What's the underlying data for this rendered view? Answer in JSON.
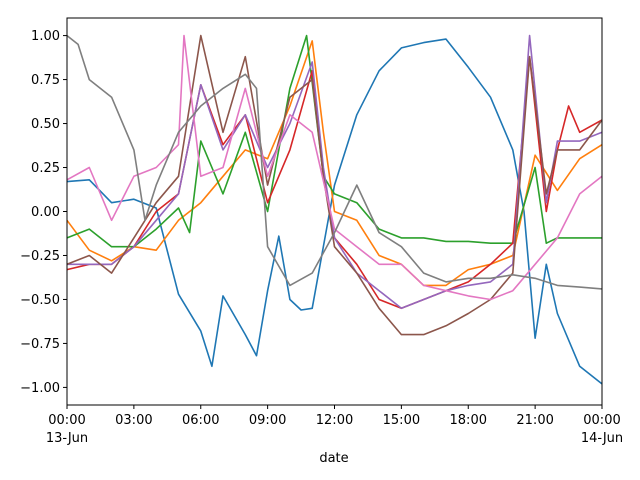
{
  "chart_data": {
    "type": "line",
    "xlabel": "date",
    "ylabel": "",
    "x_start_label": "00:00\n13-Jun",
    "x_end_label": "00:00\n14-Jun",
    "xticks": [
      {
        "time": "2013-06-13 00:00",
        "label": "00:00",
        "sublabel": "13-Jun"
      },
      {
        "time": "2013-06-13 03:00",
        "label": "03:00",
        "sublabel": ""
      },
      {
        "time": "2013-06-13 06:00",
        "label": "06:00",
        "sublabel": ""
      },
      {
        "time": "2013-06-13 09:00",
        "label": "09:00",
        "sublabel": ""
      },
      {
        "time": "2013-06-13 12:00",
        "label": "12:00",
        "sublabel": ""
      },
      {
        "time": "2013-06-13 15:00",
        "label": "15:00",
        "sublabel": ""
      },
      {
        "time": "2013-06-13 18:00",
        "label": "18:00",
        "sublabel": ""
      },
      {
        "time": "2013-06-13 21:00",
        "label": "21:00",
        "sublabel": ""
      },
      {
        "time": "2013-06-14 00:00",
        "label": "00:00",
        "sublabel": "14-Jun"
      }
    ],
    "yticks": [
      -1.0,
      -0.75,
      -0.5,
      -0.25,
      0.0,
      0.25,
      0.5,
      0.75,
      1.0
    ],
    "ytick_labels": [
      "−1.00",
      "−0.75",
      "−0.50",
      "−0.25",
      "0.00",
      "0.25",
      "0.50",
      "0.75",
      "1.00"
    ],
    "xlim": [
      "2013-06-13 00:00",
      "2013-06-14 00:00"
    ],
    "ylim": [
      -1.1,
      1.1
    ],
    "grid": false,
    "series": [
      {
        "color": "#1f77b4",
        "points": [
          [
            "2013-06-13 00:00",
            0.17
          ],
          [
            "2013-06-13 01:00",
            0.18
          ],
          [
            "2013-06-13 02:00",
            0.05
          ],
          [
            "2013-06-13 03:00",
            0.07
          ],
          [
            "2013-06-13 04:00",
            0.02
          ],
          [
            "2013-06-13 05:00",
            -0.47
          ],
          [
            "2013-06-13 06:00",
            -0.68
          ],
          [
            "2013-06-13 06:30",
            -0.88
          ],
          [
            "2013-06-13 07:00",
            -0.48
          ],
          [
            "2013-06-13 08:00",
            -0.7
          ],
          [
            "2013-06-13 08:30",
            -0.82
          ],
          [
            "2013-06-13 09:00",
            -0.45
          ],
          [
            "2013-06-13 09:30",
            -0.14
          ],
          [
            "2013-06-13 10:00",
            -0.5
          ],
          [
            "2013-06-13 10:30",
            -0.56
          ],
          [
            "2013-06-13 11:00",
            -0.55
          ],
          [
            "2013-06-13 12:00",
            0.15
          ],
          [
            "2013-06-13 13:00",
            0.55
          ],
          [
            "2013-06-13 14:00",
            0.8
          ],
          [
            "2013-06-13 15:00",
            0.93
          ],
          [
            "2013-06-13 16:00",
            0.96
          ],
          [
            "2013-06-13 17:00",
            0.98
          ],
          [
            "2013-06-13 18:00",
            0.82
          ],
          [
            "2013-06-13 19:00",
            0.65
          ],
          [
            "2013-06-13 20:00",
            0.35
          ],
          [
            "2013-06-13 20:30",
            0.0
          ],
          [
            "2013-06-13 21:00",
            -0.72
          ],
          [
            "2013-06-13 21:30",
            -0.3
          ],
          [
            "2013-06-13 22:00",
            -0.58
          ],
          [
            "2013-06-13 23:00",
            -0.88
          ],
          [
            "2013-06-14 00:00",
            -0.98
          ]
        ]
      },
      {
        "color": "#ff7f0e",
        "points": [
          [
            "2013-06-13 00:00",
            -0.05
          ],
          [
            "2013-06-13 01:00",
            -0.22
          ],
          [
            "2013-06-13 02:00",
            -0.28
          ],
          [
            "2013-06-13 03:00",
            -0.2
          ],
          [
            "2013-06-13 04:00",
            -0.22
          ],
          [
            "2013-06-13 05:00",
            -0.05
          ],
          [
            "2013-06-13 06:00",
            0.05
          ],
          [
            "2013-06-13 07:00",
            0.2
          ],
          [
            "2013-06-13 08:00",
            0.35
          ],
          [
            "2013-06-13 09:00",
            0.3
          ],
          [
            "2013-06-13 10:00",
            0.6
          ],
          [
            "2013-06-13 11:00",
            0.97
          ],
          [
            "2013-06-13 11:30",
            0.45
          ],
          [
            "2013-06-13 12:00",
            0.0
          ],
          [
            "2013-06-13 13:00",
            -0.05
          ],
          [
            "2013-06-13 14:00",
            -0.25
          ],
          [
            "2013-06-13 15:00",
            -0.3
          ],
          [
            "2013-06-13 16:00",
            -0.42
          ],
          [
            "2013-06-13 17:00",
            -0.42
          ],
          [
            "2013-06-13 18:00",
            -0.33
          ],
          [
            "2013-06-13 19:00",
            -0.3
          ],
          [
            "2013-06-13 20:00",
            -0.25
          ],
          [
            "2013-06-13 21:00",
            0.32
          ],
          [
            "2013-06-13 22:00",
            0.12
          ],
          [
            "2013-06-13 23:00",
            0.3
          ],
          [
            "2013-06-14 00:00",
            0.38
          ]
        ]
      },
      {
        "color": "#2ca02c",
        "points": [
          [
            "2013-06-13 00:00",
            -0.15
          ],
          [
            "2013-06-13 01:00",
            -0.1
          ],
          [
            "2013-06-13 02:00",
            -0.2
          ],
          [
            "2013-06-13 03:00",
            -0.2
          ],
          [
            "2013-06-13 04:00",
            -0.1
          ],
          [
            "2013-06-13 05:00",
            0.02
          ],
          [
            "2013-06-13 05:30",
            -0.12
          ],
          [
            "2013-06-13 06:00",
            0.4
          ],
          [
            "2013-06-13 07:00",
            0.1
          ],
          [
            "2013-06-13 08:00",
            0.45
          ],
          [
            "2013-06-13 09:00",
            0.0
          ],
          [
            "2013-06-13 10:00",
            0.7
          ],
          [
            "2013-06-13 10:45",
            1.0
          ],
          [
            "2013-06-13 11:30",
            0.2
          ],
          [
            "2013-06-13 12:00",
            0.1
          ],
          [
            "2013-06-13 13:00",
            0.05
          ],
          [
            "2013-06-13 14:00",
            -0.1
          ],
          [
            "2013-06-13 15:00",
            -0.15
          ],
          [
            "2013-06-13 16:00",
            -0.15
          ],
          [
            "2013-06-13 17:00",
            -0.17
          ],
          [
            "2013-06-13 18:00",
            -0.17
          ],
          [
            "2013-06-13 19:00",
            -0.18
          ],
          [
            "2013-06-13 20:00",
            -0.18
          ],
          [
            "2013-06-13 21:00",
            0.25
          ],
          [
            "2013-06-13 21:30",
            -0.18
          ],
          [
            "2013-06-13 22:00",
            -0.15
          ],
          [
            "2013-06-13 23:00",
            -0.15
          ],
          [
            "2013-06-14 00:00",
            -0.15
          ]
        ]
      },
      {
        "color": "#d62728",
        "points": [
          [
            "2013-06-13 00:00",
            -0.33
          ],
          [
            "2013-06-13 01:00",
            -0.3
          ],
          [
            "2013-06-13 02:00",
            -0.3
          ],
          [
            "2013-06-13 03:00",
            -0.2
          ],
          [
            "2013-06-13 04:00",
            0.0
          ],
          [
            "2013-06-13 05:00",
            0.1
          ],
          [
            "2013-06-13 06:00",
            0.72
          ],
          [
            "2013-06-13 07:00",
            0.38
          ],
          [
            "2013-06-13 08:00",
            0.55
          ],
          [
            "2013-06-13 09:00",
            0.05
          ],
          [
            "2013-06-13 10:00",
            0.35
          ],
          [
            "2013-06-13 11:00",
            0.8
          ],
          [
            "2013-06-13 11:30",
            0.2
          ],
          [
            "2013-06-13 12:00",
            -0.15
          ],
          [
            "2013-06-13 13:00",
            -0.3
          ],
          [
            "2013-06-13 14:00",
            -0.5
          ],
          [
            "2013-06-13 15:00",
            -0.55
          ],
          [
            "2013-06-13 16:00",
            -0.5
          ],
          [
            "2013-06-13 17:00",
            -0.45
          ],
          [
            "2013-06-13 18:00",
            -0.4
          ],
          [
            "2013-06-13 19:00",
            -0.3
          ],
          [
            "2013-06-13 20:00",
            -0.18
          ],
          [
            "2013-06-13 20:45",
            0.88
          ],
          [
            "2013-06-13 21:30",
            0.0
          ],
          [
            "2013-06-13 22:00",
            0.35
          ],
          [
            "2013-06-13 22:30",
            0.6
          ],
          [
            "2013-06-13 23:00",
            0.45
          ],
          [
            "2013-06-14 00:00",
            0.52
          ]
        ]
      },
      {
        "color": "#9467bd",
        "points": [
          [
            "2013-06-13 00:00",
            -0.3
          ],
          [
            "2013-06-13 01:00",
            -0.3
          ],
          [
            "2013-06-13 02:00",
            -0.3
          ],
          [
            "2013-06-13 03:00",
            -0.2
          ],
          [
            "2013-06-13 04:00",
            -0.05
          ],
          [
            "2013-06-13 05:00",
            0.1
          ],
          [
            "2013-06-13 06:00",
            0.72
          ],
          [
            "2013-06-13 07:00",
            0.35
          ],
          [
            "2013-06-13 08:00",
            0.55
          ],
          [
            "2013-06-13 09:00",
            0.25
          ],
          [
            "2013-06-13 10:00",
            0.5
          ],
          [
            "2013-06-13 11:00",
            0.85
          ],
          [
            "2013-06-13 11:30",
            0.25
          ],
          [
            "2013-06-13 12:00",
            -0.15
          ],
          [
            "2013-06-13 13:00",
            -0.35
          ],
          [
            "2013-06-13 14:00",
            -0.45
          ],
          [
            "2013-06-13 15:00",
            -0.55
          ],
          [
            "2013-06-13 16:00",
            -0.5
          ],
          [
            "2013-06-13 17:00",
            -0.45
          ],
          [
            "2013-06-13 18:00",
            -0.42
          ],
          [
            "2013-06-13 19:00",
            -0.4
          ],
          [
            "2013-06-13 20:00",
            -0.3
          ],
          [
            "2013-06-13 20:45",
            1.0
          ],
          [
            "2013-06-13 21:30",
            0.05
          ],
          [
            "2013-06-13 22:00",
            0.4
          ],
          [
            "2013-06-13 23:00",
            0.4
          ],
          [
            "2013-06-14 00:00",
            0.45
          ]
        ]
      },
      {
        "color": "#8c564b",
        "points": [
          [
            "2013-06-13 00:00",
            -0.3
          ],
          [
            "2013-06-13 01:00",
            -0.25
          ],
          [
            "2013-06-13 02:00",
            -0.35
          ],
          [
            "2013-06-13 03:00",
            -0.15
          ],
          [
            "2013-06-13 04:00",
            0.05
          ],
          [
            "2013-06-13 05:00",
            0.2
          ],
          [
            "2013-06-13 06:00",
            1.0
          ],
          [
            "2013-06-13 07:00",
            0.45
          ],
          [
            "2013-06-13 08:00",
            0.88
          ],
          [
            "2013-06-13 09:00",
            0.15
          ],
          [
            "2013-06-13 10:00",
            0.65
          ],
          [
            "2013-06-13 11:00",
            0.75
          ],
          [
            "2013-06-13 11:30",
            0.2
          ],
          [
            "2013-06-13 12:00",
            -0.2
          ],
          [
            "2013-06-13 13:00",
            -0.35
          ],
          [
            "2013-06-13 14:00",
            -0.55
          ],
          [
            "2013-06-13 15:00",
            -0.7
          ],
          [
            "2013-06-13 16:00",
            -0.7
          ],
          [
            "2013-06-13 17:00",
            -0.65
          ],
          [
            "2013-06-13 18:00",
            -0.58
          ],
          [
            "2013-06-13 19:00",
            -0.5
          ],
          [
            "2013-06-13 20:00",
            -0.35
          ],
          [
            "2013-06-13 20:45",
            0.88
          ],
          [
            "2013-06-13 21:30",
            0.1
          ],
          [
            "2013-06-13 22:00",
            0.35
          ],
          [
            "2013-06-13 23:00",
            0.35
          ],
          [
            "2013-06-14 00:00",
            0.52
          ]
        ]
      },
      {
        "color": "#e377c2",
        "points": [
          [
            "2013-06-13 00:00",
            0.18
          ],
          [
            "2013-06-13 01:00",
            0.25
          ],
          [
            "2013-06-13 02:00",
            -0.05
          ],
          [
            "2013-06-13 03:00",
            0.2
          ],
          [
            "2013-06-13 04:00",
            0.25
          ],
          [
            "2013-06-13 05:00",
            0.38
          ],
          [
            "2013-06-13 05:15",
            1.0
          ],
          [
            "2013-06-13 06:00",
            0.2
          ],
          [
            "2013-06-13 07:00",
            0.25
          ],
          [
            "2013-06-13 08:00",
            0.7
          ],
          [
            "2013-06-13 09:00",
            0.2
          ],
          [
            "2013-06-13 10:00",
            0.55
          ],
          [
            "2013-06-13 11:00",
            0.45
          ],
          [
            "2013-06-13 12:00",
            -0.1
          ],
          [
            "2013-06-13 13:00",
            -0.2
          ],
          [
            "2013-06-13 14:00",
            -0.3
          ],
          [
            "2013-06-13 15:00",
            -0.3
          ],
          [
            "2013-06-13 16:00",
            -0.42
          ],
          [
            "2013-06-13 17:00",
            -0.45
          ],
          [
            "2013-06-13 18:00",
            -0.48
          ],
          [
            "2013-06-13 19:00",
            -0.5
          ],
          [
            "2013-06-13 20:00",
            -0.45
          ],
          [
            "2013-06-13 21:00",
            -0.3
          ],
          [
            "2013-06-13 22:00",
            -0.15
          ],
          [
            "2013-06-13 23:00",
            0.1
          ],
          [
            "2013-06-14 00:00",
            0.2
          ]
        ]
      },
      {
        "color": "#7f7f7f",
        "points": [
          [
            "2013-06-13 00:00",
            1.0
          ],
          [
            "2013-06-13 00:30",
            0.95
          ],
          [
            "2013-06-13 01:00",
            0.75
          ],
          [
            "2013-06-13 02:00",
            0.65
          ],
          [
            "2013-06-13 03:00",
            0.35
          ],
          [
            "2013-06-13 03:30",
            -0.05
          ],
          [
            "2013-06-13 04:00",
            0.15
          ],
          [
            "2013-06-13 05:00",
            0.45
          ],
          [
            "2013-06-13 06:00",
            0.6
          ],
          [
            "2013-06-13 07:00",
            0.7
          ],
          [
            "2013-06-13 08:00",
            0.78
          ],
          [
            "2013-06-13 08:30",
            0.7
          ],
          [
            "2013-06-13 09:00",
            -0.2
          ],
          [
            "2013-06-13 10:00",
            -0.42
          ],
          [
            "2013-06-13 11:00",
            -0.35
          ],
          [
            "2013-06-13 12:00",
            -0.12
          ],
          [
            "2013-06-13 13:00",
            0.15
          ],
          [
            "2013-06-13 14:00",
            -0.12
          ],
          [
            "2013-06-13 15:00",
            -0.2
          ],
          [
            "2013-06-13 16:00",
            -0.35
          ],
          [
            "2013-06-13 17:00",
            -0.4
          ],
          [
            "2013-06-13 18:00",
            -0.38
          ],
          [
            "2013-06-13 19:00",
            -0.38
          ],
          [
            "2013-06-13 20:00",
            -0.36
          ],
          [
            "2013-06-13 21:00",
            -0.38
          ],
          [
            "2013-06-13 22:00",
            -0.42
          ],
          [
            "2013-06-13 23:00",
            -0.43
          ],
          [
            "2013-06-14 00:00",
            -0.44
          ]
        ]
      }
    ]
  }
}
